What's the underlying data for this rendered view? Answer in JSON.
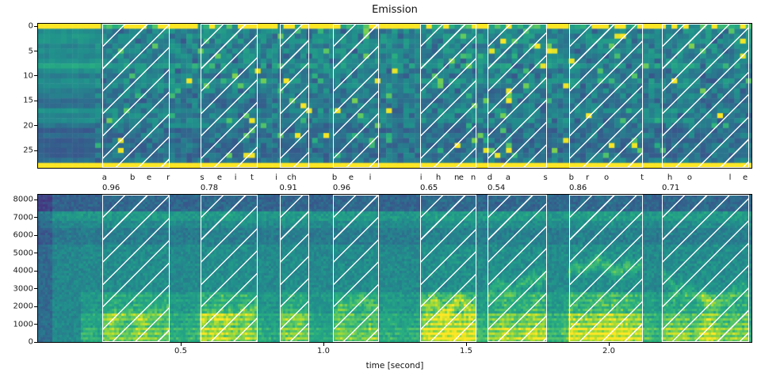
{
  "style": {
    "background": "#ffffff",
    "text_color": "#111111",
    "hatch_color": "#ffffff",
    "viridis_stops": [
      "#440154",
      "#46327e",
      "#3b528b",
      "#2c728e",
      "#21918c",
      "#27ad81",
      "#5ec962",
      "#addc30",
      "#fde725"
    ]
  },
  "chart_data": [
    {
      "type": "heatmap",
      "title": "Emission",
      "ylabel": "",
      "y_ticks": [
        0,
        5,
        10,
        15,
        20,
        25
      ],
      "n_token_rows": 29,
      "n_frames": 125,
      "x_range_seconds": [
        0.0,
        2.5
      ],
      "colormap": "viridis",
      "values_note": "CTC emission probabilities; row 0 (blank) and bottom row saturated yellow, mid rows teal/blue noise with sparse bright cells"
    },
    {
      "type": "heatmap",
      "subtype": "spectrogram",
      "xlabel": "time [second]",
      "x_ticks": [
        "0.5",
        "1.0",
        "1.5",
        "2.0"
      ],
      "x_tick_values": [
        0.5,
        1.0,
        1.5,
        2.0
      ],
      "x_range_seconds": [
        0.0,
        2.5
      ],
      "y_ticks": [
        0,
        1000,
        2000,
        3000,
        4000,
        5000,
        6000,
        7000,
        8000
      ],
      "y_max_hz": 8250,
      "colormap": "viridis",
      "values_note": "speech spectrogram; strong yellow-green energy below ~2500 Hz during speech, light band near 7000 Hz, dark band above 7400 Hz"
    }
  ],
  "alignment": {
    "transcript": "aber seit ich bei ihnen das brot hole",
    "words": [
      {
        "word": "aber",
        "score": "0.96",
        "start": 0.225,
        "end": 0.461,
        "chars": [
          {
            "ch": "a",
            "t": 0.233
          },
          {
            "ch": "b",
            "t": 0.331
          },
          {
            "ch": "e",
            "t": 0.389
          },
          {
            "ch": "r",
            "t": 0.456
          }
        ]
      },
      {
        "word": "seit",
        "score": "0.78",
        "start": 0.569,
        "end": 0.769,
        "chars": [
          {
            "ch": "s",
            "t": 0.575
          },
          {
            "ch": "e",
            "t": 0.636
          },
          {
            "ch": "i",
            "t": 0.692
          },
          {
            "ch": "t",
            "t": 0.75
          }
        ]
      },
      {
        "word": "ich",
        "score": "0.91",
        "start": 0.846,
        "end": 0.95,
        "chars": [
          {
            "ch": "i",
            "t": 0.835
          },
          {
            "ch": "ch",
            "t": 0.889
          }
        ]
      },
      {
        "word": "bei",
        "score": "0.96",
        "start": 1.033,
        "end": 1.194,
        "chars": [
          {
            "ch": "b",
            "t": 1.039
          },
          {
            "ch": "e",
            "t": 1.097
          },
          {
            "ch": "i",
            "t": 1.164
          }
        ]
      },
      {
        "word": "ihnen",
        "score": "0.65",
        "start": 1.339,
        "end": 1.536,
        "chars": [
          {
            "ch": "i",
            "t": 1.342
          },
          {
            "ch": "h",
            "t": 1.403
          },
          {
            "ch": "n",
            "t": 1.467
          },
          {
            "ch": "e",
            "t": 1.483
          },
          {
            "ch": "n",
            "t": 1.525
          }
        ]
      },
      {
        "word": "das",
        "score": "0.54",
        "start": 1.575,
        "end": 1.783,
        "chars": [
          {
            "ch": "d",
            "t": 1.583
          },
          {
            "ch": "a",
            "t": 1.647
          },
          {
            "ch": "s",
            "t": 1.778
          }
        ]
      },
      {
        "word": "brot",
        "score": "0.86",
        "start": 1.861,
        "end": 2.119,
        "chars": [
          {
            "ch": "b",
            "t": 1.869
          },
          {
            "ch": "r",
            "t": 1.925
          },
          {
            "ch": "o",
            "t": 1.992
          },
          {
            "ch": "t",
            "t": 2.117
          }
        ]
      },
      {
        "word": "hole",
        "score": "0.71",
        "start": 2.186,
        "end": 2.492,
        "chars": [
          {
            "ch": "h",
            "t": 2.214
          },
          {
            "ch": "o",
            "t": 2.283
          },
          {
            "ch": "l",
            "t": 2.425
          },
          {
            "ch": "e",
            "t": 2.478
          }
        ]
      }
    ]
  }
}
